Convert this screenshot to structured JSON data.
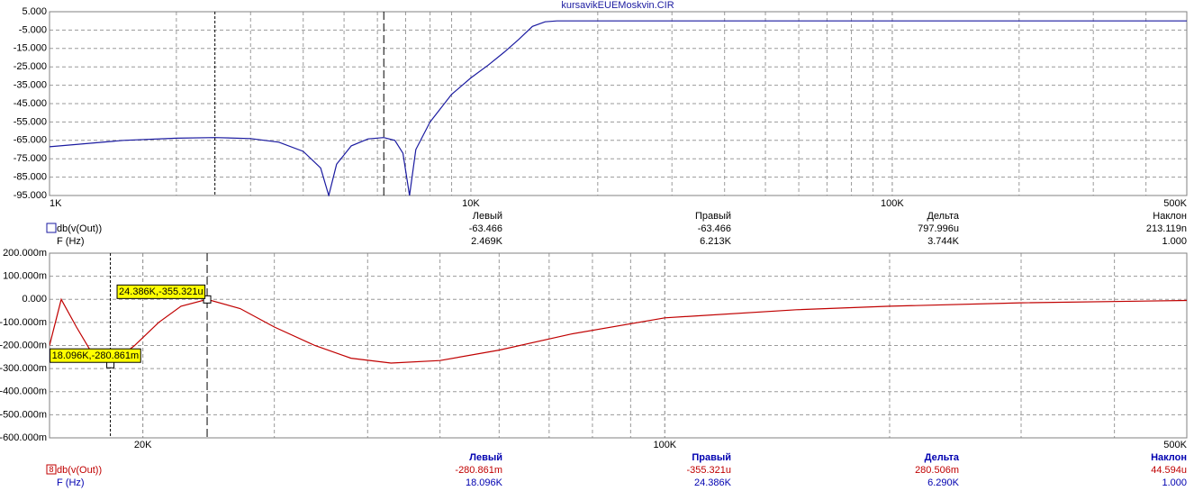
{
  "chart_data": [
    {
      "type": "line",
      "title": "kursavikEUEMoskvin.CIR",
      "log_x": true,
      "grid": true,
      "x": [
        1000,
        1500,
        2000,
        2469,
        3000,
        3500,
        4000,
        4400,
        4600,
        4800,
        5200,
        5700,
        6213,
        6600,
        6900,
        7150,
        7400,
        8000,
        9000,
        10000,
        11000,
        12000,
        13000,
        14000,
        15000,
        16000,
        20000,
        50000,
        100000,
        500000
      ],
      "series": [
        {
          "name": "db(v(Out))",
          "color": "#1a1aa0",
          "values": [
            -68.5,
            -65,
            -63.8,
            -63.466,
            -64,
            -66,
            -71,
            -80,
            -95,
            -78,
            -68,
            -64.2,
            -63.466,
            -65,
            -72,
            -95,
            -70,
            -55,
            -40,
            -31,
            -24,
            -17,
            -10,
            -3,
            -0.5,
            0,
            0,
            0,
            0,
            0
          ]
        }
      ],
      "xlim": [
        1000,
        500000
      ],
      "xticks": [
        {
          "value": 1000,
          "label": "1K"
        },
        {
          "value": 10000,
          "label": "10K"
        },
        {
          "value": 100000,
          "label": "100K"
        },
        {
          "value": 500000,
          "label": "500K"
        }
      ],
      "ylim": [
        -95,
        5
      ],
      "yticks": [
        {
          "value": 5,
          "label": "5.000"
        },
        {
          "value": -5,
          "label": "-5.000"
        },
        {
          "value": -15,
          "label": "-15.000"
        },
        {
          "value": -25,
          "label": "-25.000"
        },
        {
          "value": -35,
          "label": "-35.000"
        },
        {
          "value": -45,
          "label": "-45.000"
        },
        {
          "value": -55,
          "label": "-55.000"
        },
        {
          "value": -65,
          "label": "-65.000"
        },
        {
          "value": -75,
          "label": "-75.000"
        },
        {
          "value": -85,
          "label": "-85.000"
        },
        {
          "value": -95,
          "label": "-95.000"
        }
      ],
      "cursors": [
        {
          "x": 2469,
          "y": -63.466
        },
        {
          "x": 6213,
          "y": -63.466
        }
      ],
      "readout": {
        "headers": [
          "Левый",
          "Правый",
          "Дельта",
          "Наклон"
        ],
        "y_row": [
          "-63.466",
          "-63.466",
          "797.996u",
          "213.119n"
        ],
        "x_name": "F (Hz)",
        "x_row": [
          "2.469K",
          "6.213K",
          "3.744K",
          "1.000"
        ]
      }
    },
    {
      "type": "line",
      "log_x": true,
      "grid": true,
      "x": [
        15000,
        15550,
        16300,
        17000,
        18096,
        19500,
        21000,
        22500,
        24386,
        27000,
        30000,
        34000,
        38000,
        43000,
        50000,
        60000,
        75000,
        100000,
        150000,
        200000,
        300000,
        500000
      ],
      "series": [
        {
          "name": "db(v(Out))",
          "marker_label": "8",
          "color": "#c00000",
          "values": [
            -0.2,
            0,
            -0.12,
            -0.22,
            -0.280861,
            -0.2,
            -0.1,
            -0.03,
            -0.000355321,
            -0.04,
            -0.12,
            -0.2,
            -0.255,
            -0.276,
            -0.265,
            -0.22,
            -0.15,
            -0.08,
            -0.045,
            -0.03,
            -0.015,
            -0.005
          ]
        }
      ],
      "xlim": [
        15000,
        500000
      ],
      "xticks": [
        {
          "value": 20000,
          "label": "20K"
        },
        {
          "value": 100000,
          "label": "100K"
        },
        {
          "value": 500000,
          "label": "500K"
        }
      ],
      "ylim": [
        -0.6,
        0.2
      ],
      "yticks": [
        {
          "value": 0.2,
          "label": "200.000m"
        },
        {
          "value": 0.1,
          "label": "100.000m"
        },
        {
          "value": 0,
          "label": "0.000"
        },
        {
          "value": -0.1,
          "label": "-100.000m"
        },
        {
          "value": -0.2,
          "label": "-200.000m"
        },
        {
          "value": -0.3,
          "label": "-300.000m"
        },
        {
          "value": -0.4,
          "label": "-400.000m"
        },
        {
          "value": -0.5,
          "label": "-500.000m"
        },
        {
          "value": -0.6,
          "label": "-600.000m"
        }
      ],
      "cursors": [
        {
          "x": 18096,
          "y": -0.280861,
          "tag": "18.096K,-280.861m"
        },
        {
          "x": 24386,
          "y": -0.000355321,
          "tag": "24.386K,-355.321u"
        }
      ],
      "readout": {
        "headers": [
          "Левый",
          "Правый",
          "Дельта",
          "Наклон"
        ],
        "y_row": [
          "-280.861m",
          "-355.321u",
          "280.506m",
          "44.594u"
        ],
        "x_name": "F (Hz)",
        "x_row": [
          "18.096K",
          "24.386K",
          "6.290K",
          "1.000"
        ]
      }
    }
  ]
}
